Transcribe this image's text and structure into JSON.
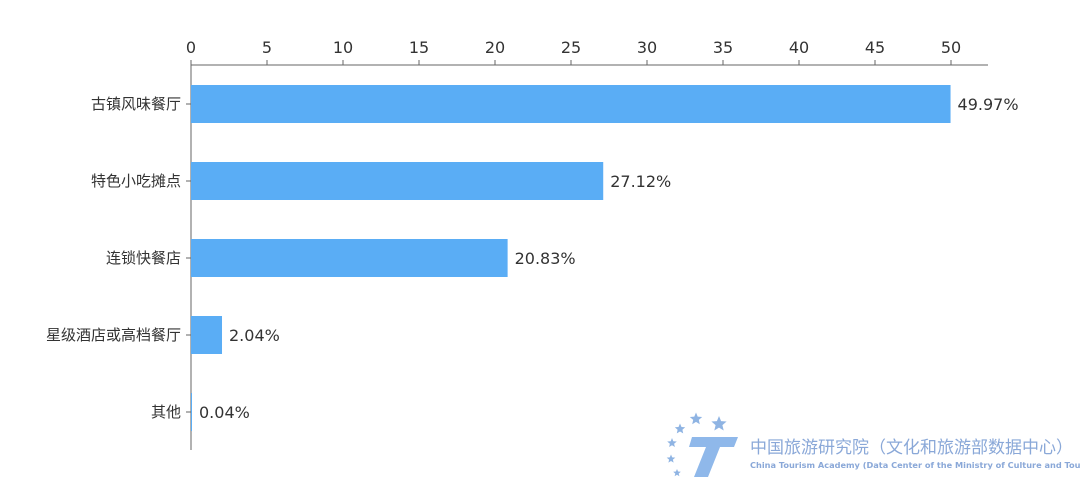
{
  "chart_data": {
    "type": "bar",
    "orientation": "horizontal",
    "categories": [
      "古镇风味餐厅",
      "特色小吃摊点",
      "连锁快餐店",
      "星级酒店或高档餐厅",
      "其他"
    ],
    "values": [
      49.97,
      27.12,
      20.83,
      2.04,
      0.04
    ],
    "data_labels": [
      "49.97%",
      "27.12%",
      "20.83%",
      "2.04%",
      "0.04%"
    ],
    "xlim": [
      0,
      52
    ],
    "x_ticks": [
      "0",
      "5",
      "10",
      "15",
      "20",
      "25",
      "30",
      "35",
      "40",
      "45",
      "50"
    ],
    "x_axis_position": "top",
    "grid": false,
    "bar_color": "#5aadf5"
  },
  "watermark": {
    "title_cn": "中国旅游研究院（文化和旅游部数据中心）",
    "title_en": "China Tourism Academy (Data Center of the Ministry of Culture and Tourism)",
    "color": "#7fa3d6"
  }
}
